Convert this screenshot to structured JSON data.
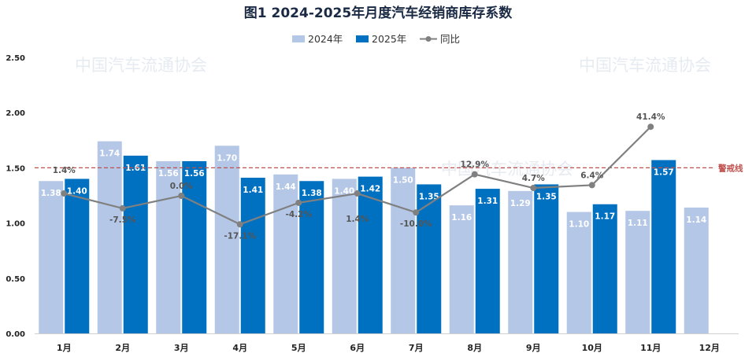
{
  "chart_data": {
    "type": "bar",
    "title": "图1  2024-2025年月度汽车经销商库存系数",
    "categories": [
      "1月",
      "2月",
      "3月",
      "4月",
      "5月",
      "6月",
      "7月",
      "8月",
      "9月",
      "10月",
      "11月",
      "12月"
    ],
    "series": [
      {
        "name": "2024年",
        "color": "#b4c7e7",
        "values": [
          1.38,
          1.74,
          1.56,
          1.7,
          1.44,
          1.4,
          1.5,
          1.16,
          1.29,
          1.1,
          1.11,
          1.14
        ]
      },
      {
        "name": "2025年",
        "color": "#0070c0",
        "values": [
          1.4,
          1.61,
          1.56,
          1.41,
          1.38,
          1.42,
          1.35,
          1.31,
          1.35,
          1.17,
          1.57,
          null
        ]
      }
    ],
    "line_series": {
      "name": "同比",
      "color": "#808080",
      "labels": [
        "1.4%",
        "-7.5%",
        "0.0%",
        "-17.1%",
        "-4.2%",
        "1.4%",
        "-10.0%",
        "12.9%",
        "4.7%",
        "6.4%",
        "41.4%",
        ""
      ],
      "values_percent": [
        1.4,
        -7.5,
        0.0,
        -17.1,
        -4.2,
        1.4,
        -10.0,
        12.9,
        4.7,
        6.4,
        41.4,
        null
      ]
    },
    "yticks": [
      "0.00",
      "0.50",
      "1.00",
      "1.50",
      "2.00",
      "2.50"
    ],
    "ylim": [
      0,
      2.5
    ],
    "reference_line": {
      "value": 1.5,
      "label": "警戒线",
      "color": "#c0504d"
    },
    "grid": false,
    "legend_position": "top-center"
  },
  "watermark": {
    "text": "中国汽车流通协会"
  }
}
